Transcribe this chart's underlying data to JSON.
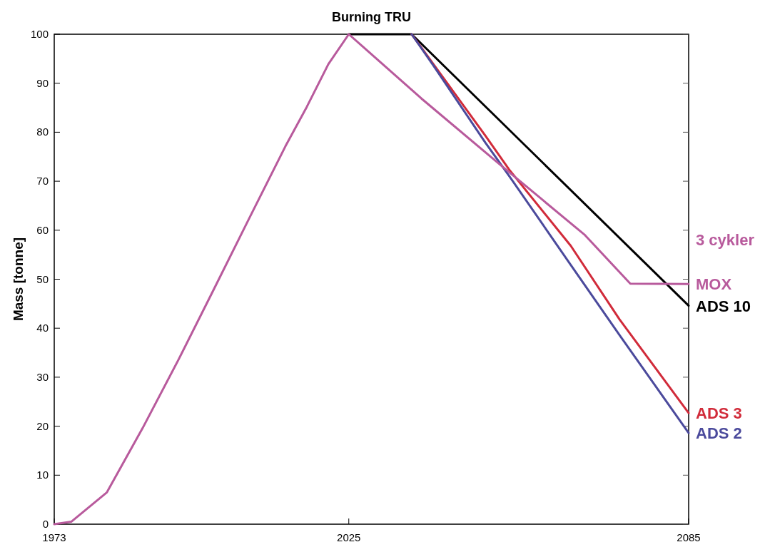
{
  "chart_data": {
    "type": "line",
    "title": "Burning TRU",
    "ylabel": "Mass [tonne]",
    "xlim": [
      1973,
      2085
    ],
    "xticks": [
      1973,
      2025,
      2085
    ],
    "ylim": [
      0,
      100
    ],
    "yticks": [
      0,
      10,
      20,
      30,
      40,
      50,
      60,
      70,
      80,
      90,
      100
    ],
    "grid": false,
    "marker": "none",
    "line_style": "solid",
    "annotations": [
      "3 cykler"
    ],
    "series": [
      {
        "name": "MOX",
        "color": "#b85a9c",
        "x": [
          1973,
          1976,
          1982.3,
          1988.6,
          1994.9,
          2001.2,
          2007.5,
          2013.8,
          2017.6,
          2021.4,
          2025,
          2037.8,
          2051.6,
          2059.2,
          2066.7,
          2074.7,
          2085
        ],
        "values": [
          0,
          0.5,
          6.5,
          19.6,
          33.5,
          48,
          62.6,
          77.1,
          85.2,
          93.9,
          100,
          86.9,
          73.5,
          66.2,
          59,
          49.1,
          49
        ]
      },
      {
        "name": "ADS 10",
        "color": "#000000",
        "x": [
          2025,
          2036.1,
          2085
        ],
        "values": [
          100,
          100,
          44.6
        ]
      },
      {
        "name": "ADS 3",
        "color": "#d12b3a",
        "x": [
          2036.1,
          2040,
          2049.1,
          2053.3,
          2064.2,
          2072.8,
          2085
        ],
        "values": [
          100,
          93.8,
          79.3,
          72.4,
          56.8,
          41.8,
          22.7
        ]
      },
      {
        "name": "ADS 2",
        "color": "#4b4a9c",
        "x": [
          2036.1,
          2040,
          2049.1,
          2053.3,
          2064.2,
          2072.8,
          2085
        ],
        "values": [
          100,
          93.5,
          77.9,
          71.1,
          52.9,
          38.6,
          18.6
        ]
      }
    ]
  }
}
